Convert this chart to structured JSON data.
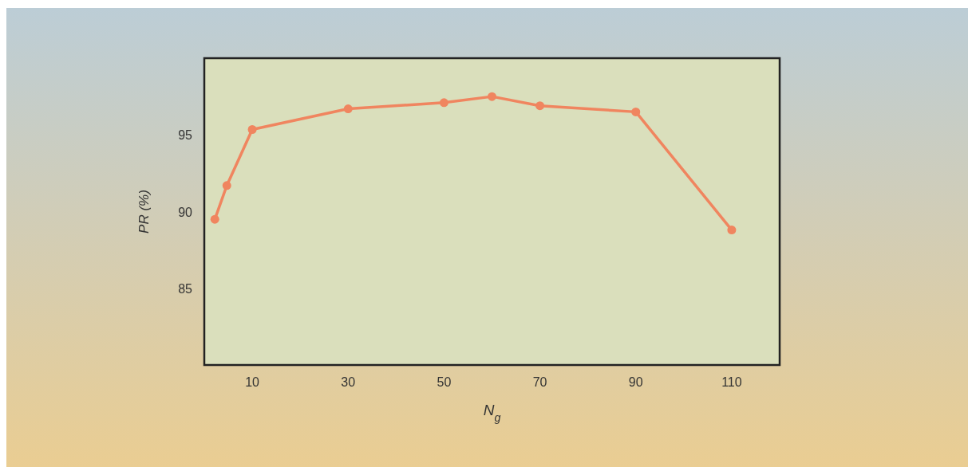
{
  "chart_data": {
    "type": "line",
    "xlabel": "N$_{g}$",
    "ylabel": "PR (%)",
    "x": [
      2.2,
      4.7,
      10,
      30,
      50,
      60,
      70,
      90,
      110
    ],
    "series": [
      {
        "color": "#f0855f",
        "values": [
          89.5,
          91.7,
          95.35,
          96.7,
          97.1,
          97.5,
          96.9,
          96.5,
          88.8
        ]
      }
    ],
    "xlim": [
      0,
      120
    ],
    "xticks": [
      10,
      30,
      50,
      70,
      90,
      110
    ],
    "ylim": [
      80,
      100
    ],
    "yticks": [
      85,
      90,
      95
    ],
    "marker": "circle",
    "line_style": "solid"
  }
}
